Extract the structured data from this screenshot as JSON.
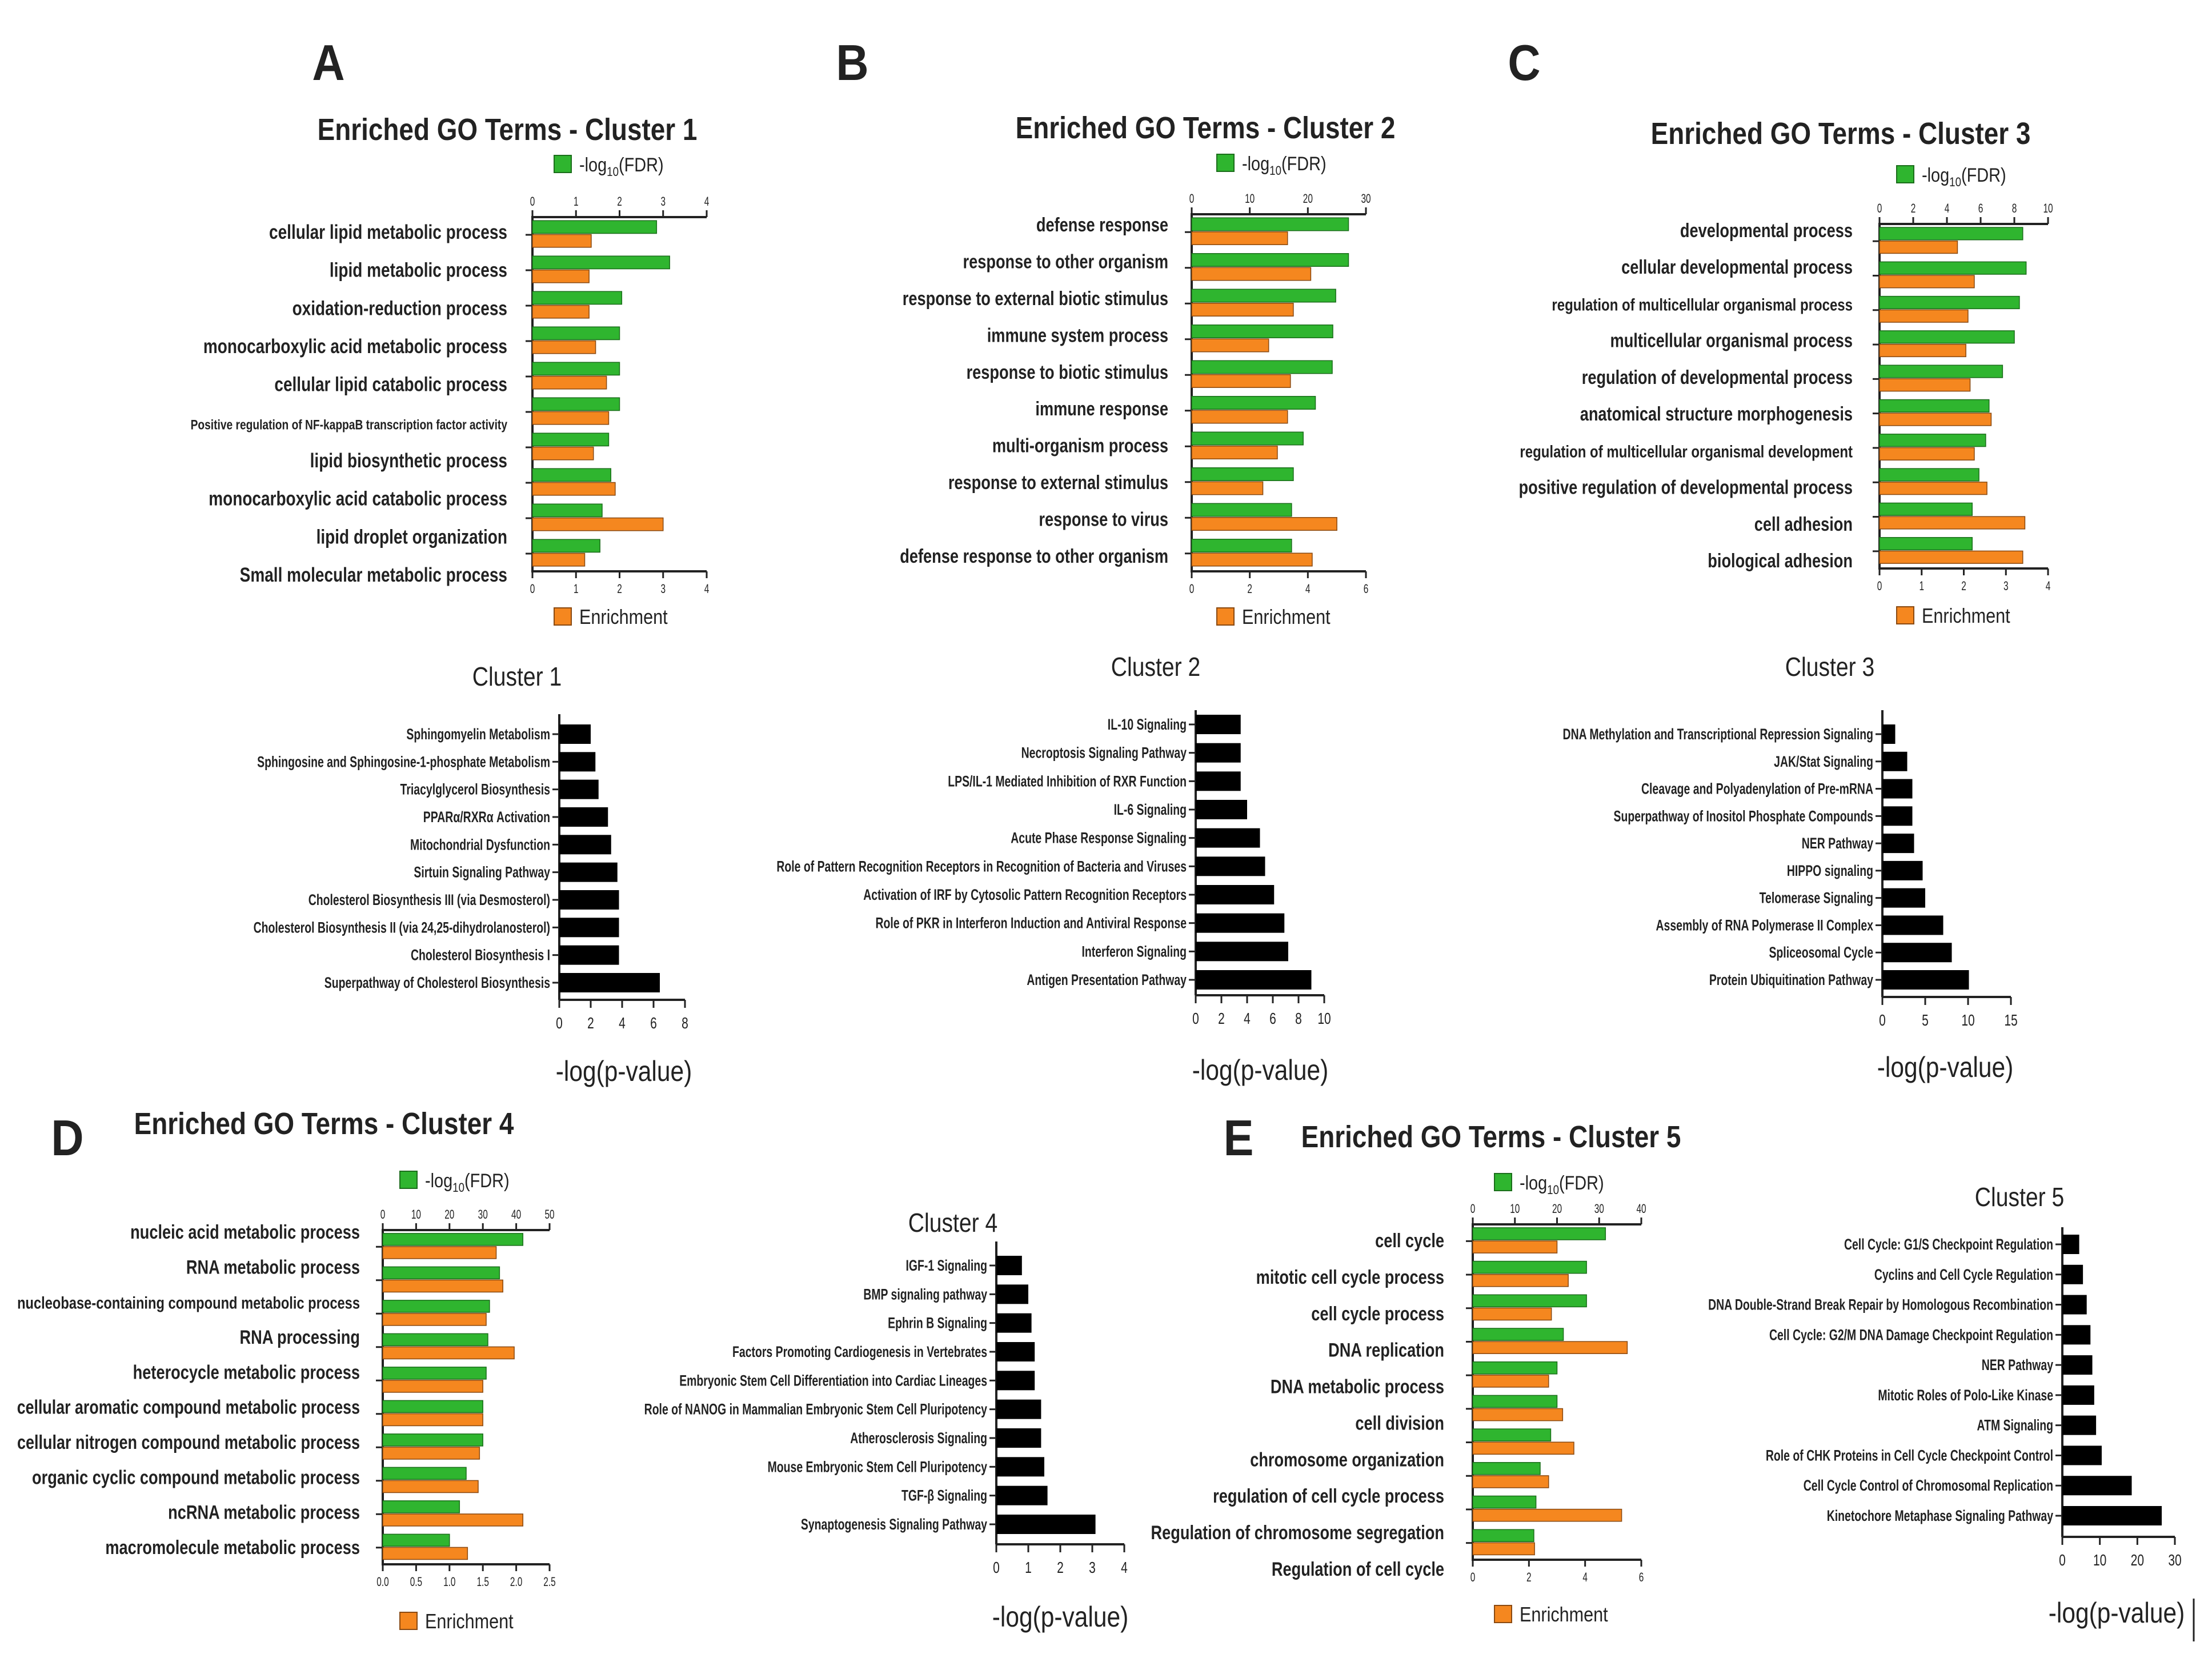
{
  "figure": {
    "panel_letters": [
      "A",
      "B",
      "C",
      "D",
      "E"
    ],
    "colors": {
      "fdr": "#2fb52f",
      "enrichment": "#f5871f",
      "pathway": "#000000",
      "axis": "#222222"
    }
  },
  "chart_data": [
    {
      "type": "bar",
      "orientation": "horizontal",
      "panel": "A",
      "title": "Enriched GO Terms - Cluster 1",
      "categories": [
        "cellular lipid metabolic process",
        "lipid metabolic process",
        "oxidation-reduction process",
        "monocarboxylic acid metabolic process",
        "cellular lipid catabolic process",
        "Positive regulation of NF-kappaB transcription factor activity",
        "lipid biosynthetic process",
        "monocarboxylic acid catabolic process",
        "lipid droplet organization",
        "Small molecular metabolic process"
      ],
      "series": [
        {
          "name": "-log10(FDR)",
          "axis": "top",
          "xlim": [
            0,
            4
          ],
          "ticks": [
            "0",
            "1",
            "2",
            "3",
            "4"
          ],
          "values": [
            2.85,
            3.15,
            2.05,
            2.0,
            2.0,
            2.0,
            1.75,
            1.8,
            1.6,
            1.55
          ]
        },
        {
          "name": "Enrichment",
          "axis": "bottom",
          "xlim": [
            0,
            4
          ],
          "ticks": [
            "0",
            "1",
            "2",
            "3",
            "4"
          ],
          "values": [
            1.35,
            1.3,
            1.3,
            1.45,
            1.7,
            1.75,
            1.4,
            1.9,
            3.0,
            1.2
          ]
        }
      ],
      "legend": "top and bottom"
    },
    {
      "type": "bar",
      "orientation": "horizontal",
      "panel": "B",
      "title": "Enriched GO Terms - Cluster 2",
      "categories": [
        "defense response",
        "response to other organism",
        "response to external biotic stimulus",
        "immune system process",
        "response to biotic stimulus",
        "immune response",
        "multi-organism process",
        "response to external stimulus",
        "response to virus",
        "defense response to other organism"
      ],
      "series": [
        {
          "name": "-log10(FDR)",
          "axis": "top",
          "xlim": [
            0,
            30
          ],
          "ticks": [
            "0",
            "10",
            "20",
            "30"
          ],
          "values": [
            27,
            27,
            24.8,
            24.3,
            24.2,
            21.3,
            19.2,
            17.5,
            17.2,
            17.2
          ]
        },
        {
          "name": "Enrichment",
          "axis": "bottom",
          "xlim": [
            0,
            6
          ],
          "ticks": [
            "0",
            "2",
            "4",
            "6"
          ],
          "values": [
            3.3,
            4.1,
            3.5,
            2.65,
            3.4,
            3.3,
            2.95,
            2.45,
            5.0,
            4.15
          ]
        }
      ],
      "legend": "top and bottom"
    },
    {
      "type": "bar",
      "orientation": "horizontal",
      "panel": "C",
      "title": "Enriched GO Terms - Cluster 3",
      "categories": [
        "developmental process",
        "cellular developmental process",
        "regulation of multicellular organismal process",
        "multicellular organismal process",
        "regulation of developmental process",
        "anatomical structure morphogenesis",
        "regulation of multicellular organismal development",
        "positive regulation of developmental process",
        "cell adhesion",
        "biological adhesion"
      ],
      "series": [
        {
          "name": "-log10(FDR)",
          "axis": "top",
          "xlim": [
            0,
            10
          ],
          "ticks": [
            "0",
            "2",
            "4",
            "6",
            "8",
            "10"
          ],
          "values": [
            8.5,
            8.7,
            8.3,
            8.0,
            7.3,
            6.5,
            6.3,
            5.9,
            5.5,
            5.5
          ]
        },
        {
          "name": "Enrichment",
          "axis": "bottom",
          "xlim": [
            0,
            4
          ],
          "ticks": [
            "0",
            "1",
            "2",
            "3",
            "4"
          ],
          "values": [
            1.85,
            2.25,
            2.1,
            2.05,
            2.15,
            2.65,
            2.25,
            2.55,
            3.45,
            3.4
          ]
        }
      ],
      "legend": "top and bottom"
    },
    {
      "type": "bar",
      "orientation": "horizontal",
      "panel": "D",
      "title": "Enriched GO Terms - Cluster 4",
      "categories": [
        "nucleic acid metabolic process",
        "RNA metabolic process",
        "nucleobase-containing compound metabolic process",
        "RNA processing",
        "heterocycle metabolic process",
        "cellular aromatic compound metabolic process",
        "cellular nitrogen compound metabolic process",
        "organic cyclic compound metabolic process",
        "ncRNA metabolic process",
        "macromolecule metabolic process"
      ],
      "series": [
        {
          "name": "-log10(FDR)",
          "axis": "top",
          "xlim": [
            0,
            50
          ],
          "ticks": [
            "0",
            "10",
            "20",
            "30",
            "40",
            "50"
          ],
          "values": [
            42,
            35,
            32,
            31.5,
            31,
            30,
            30,
            25,
            23,
            20
          ]
        },
        {
          "name": "Enrichment",
          "axis": "bottom",
          "xlim": [
            0,
            2.5
          ],
          "ticks": [
            "0.0",
            "0.5",
            "1.0",
            "1.5",
            "2.0",
            "2.5"
          ],
          "values": [
            1.7,
            1.8,
            1.55,
            1.97,
            1.5,
            1.5,
            1.45,
            1.43,
            2.1,
            1.27
          ]
        }
      ],
      "legend": "top and bottom"
    },
    {
      "type": "bar",
      "orientation": "horizontal",
      "panel": "E",
      "title": "Enriched GO Terms - Cluster 5",
      "categories": [
        "cell cycle",
        "mitotic cell cycle process",
        "cell cycle process",
        "DNA replication",
        "DNA metabolic process",
        "cell division",
        "chromosome organization",
        "regulation of cell cycle process",
        "Regulation of chromosome segregation",
        "Regulation of cell cycle"
      ],
      "series": [
        {
          "name": "-log10(FDR)",
          "axis": "top",
          "xlim": [
            0,
            40
          ],
          "ticks": [
            "0",
            "10",
            "20",
            "30",
            "40"
          ],
          "values": [
            31.5,
            27,
            27,
            21.5,
            20,
            20,
            18.5,
            16,
            15,
            14.5
          ]
        },
        {
          "name": "Enrichment",
          "axis": "bottom",
          "xlim": [
            0,
            6
          ],
          "ticks": [
            "0",
            "2",
            "4",
            "6"
          ],
          "values": [
            3.0,
            3.4,
            2.8,
            5.5,
            2.7,
            3.2,
            3.6,
            2.7,
            5.3,
            2.2
          ]
        }
      ],
      "legend": "top and bottom"
    },
    {
      "type": "bar",
      "orientation": "horizontal",
      "title": "Cluster 1",
      "xlabel": "-log(p-value)",
      "xlim": [
        0,
        8
      ],
      "ticks": [
        "0",
        "2",
        "4",
        "6",
        "8"
      ],
      "categories": [
        "Sphingomyelin Metabolism",
        "Sphingosine and Sphingosine-1-phosphate Metabolism",
        "Triacylglycerol Biosynthesis",
        "PPARα/RXRα Activation",
        "Mitochondrial Dysfunction",
        "Sirtuin Signaling Pathway",
        "Cholesterol Biosynthesis III (via Desmosterol)",
        "Cholesterol Biosynthesis II (via 24,25-dihydrolanosterol)",
        "Cholesterol Biosynthesis I",
        "Superpathway of Cholesterol Biosynthesis"
      ],
      "values": [
        2.0,
        2.3,
        2.5,
        3.1,
        3.3,
        3.7,
        3.8,
        3.8,
        3.8,
        6.4
      ]
    },
    {
      "type": "bar",
      "orientation": "horizontal",
      "title": "Cluster 2",
      "xlabel": "-log(p-value)",
      "xlim": [
        0,
        10
      ],
      "ticks": [
        "0",
        "2",
        "4",
        "6",
        "8",
        "10"
      ],
      "categories": [
        "IL-10 Signaling",
        "Necroptosis Signaling Pathway",
        "LPS/IL-1 Mediated Inhibition of RXR Function",
        "IL-6 Signaling",
        "Acute Phase Response Signaling",
        "Role of Pattern Recognition Receptors in Recognition of Bacteria and Viruses",
        "Activation of IRF by Cytosolic Pattern Recognition Receptors",
        "Role of PKR in Interferon Induction and Antiviral Response",
        "Interferon Signaling",
        "Antigen Presentation Pathway"
      ],
      "values": [
        3.5,
        3.5,
        3.5,
        4.0,
        5.0,
        5.4,
        6.1,
        6.9,
        7.2,
        9.0
      ]
    },
    {
      "type": "bar",
      "orientation": "horizontal",
      "title": "Cluster 3",
      "xlabel": "-log(p-value)",
      "xlim": [
        0,
        15
      ],
      "ticks": [
        "0",
        "5",
        "10",
        "15"
      ],
      "categories": [
        "DNA Methylation and Transcriptional Repression Signaling",
        "JAK/Stat Signaling",
        "Cleavage and Polyadenylation of Pre-mRNA",
        "Superpathway of Inositol Phosphate Compounds",
        "NER Pathway",
        "HIPPO signaling",
        "Telomerase Signaling",
        "Assembly of RNA Polymerase II Complex",
        "Spliceosomal Cycle",
        "Protein Ubiquitination Pathway"
      ],
      "values": [
        1.5,
        2.9,
        3.5,
        3.5,
        3.7,
        4.7,
        5.0,
        7.1,
        8.1,
        10.1
      ]
    },
    {
      "type": "bar",
      "orientation": "horizontal",
      "title": "Cluster 4",
      "xlabel": "-log(p-value)",
      "xlim": [
        0,
        4
      ],
      "ticks": [
        "0",
        "1",
        "2",
        "3",
        "4"
      ],
      "categories": [
        "IGF-1 Signaling",
        "BMP signaling pathway",
        "Ephrin B Signaling",
        "Factors Promoting Cardiogenesis in Vertebrates",
        "Embryonic Stem Cell Differentiation into Cardiac Lineages",
        "Role of NANOG in Mammalian Embryonic Stem Cell Pluripotency",
        "Atherosclerosis Signaling",
        "Mouse Embryonic Stem Cell Pluripotency",
        "TGF-β Signaling",
        "Synaptogenesis Signaling Pathway"
      ],
      "values": [
        0.8,
        1.0,
        1.1,
        1.2,
        1.2,
        1.4,
        1.4,
        1.5,
        1.6,
        3.1
      ]
    },
    {
      "type": "bar",
      "orientation": "horizontal",
      "title": "Cluster 5",
      "xlabel": "-log(p-value)",
      "xlim": [
        0,
        30
      ],
      "ticks": [
        "0",
        "10",
        "20",
        "30"
      ],
      "categories": [
        "Cell Cycle: G1/S Checkpoint Regulation",
        "Cyclins and Cell Cycle Regulation",
        "DNA Double-Strand Break Repair by Homologous Recombination",
        "Cell Cycle: G2/M DNA Damage Checkpoint Regulation",
        "NER Pathway",
        "Mitotic Roles of Polo-Like Kinase",
        "ATM Signaling",
        "Role of CHK Proteins in Cell Cycle Checkpoint Control",
        "Cell Cycle Control of Chromosomal Replication",
        "Kinetochore Metaphase Signaling Pathway"
      ],
      "values": [
        4.5,
        5.5,
        6.5,
        7.5,
        8.0,
        8.5,
        9.0,
        10.5,
        18.5,
        26.5
      ]
    }
  ]
}
